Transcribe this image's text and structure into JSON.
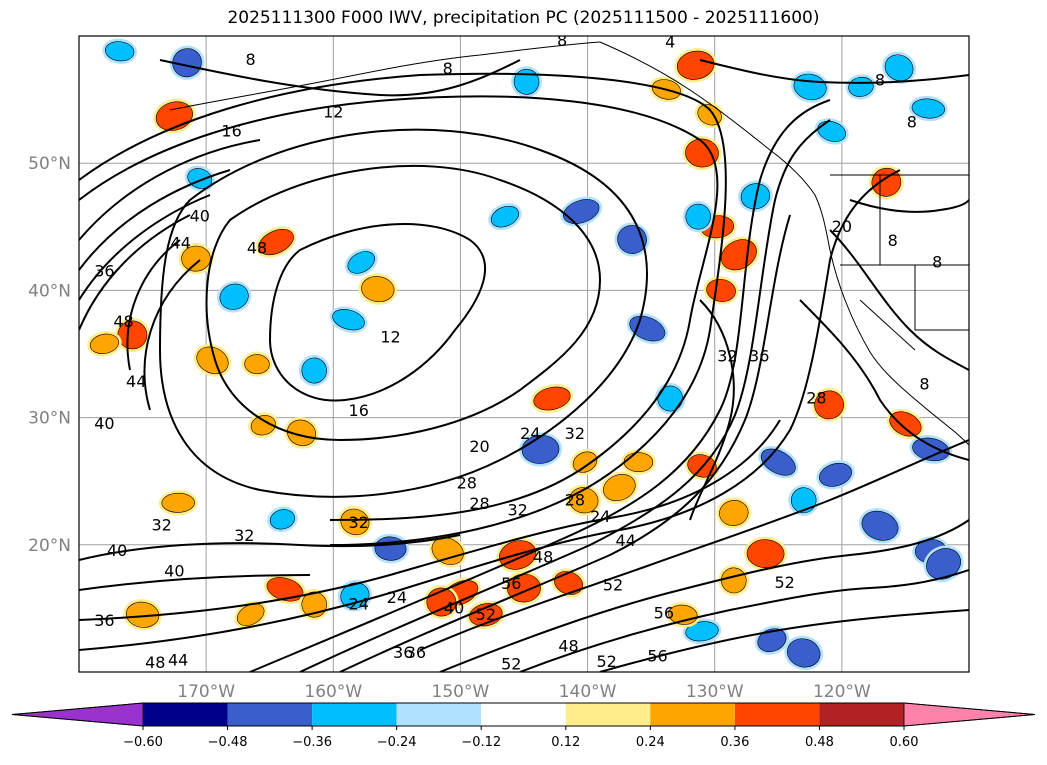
{
  "chart_data": {
    "type": "map-contour",
    "title": "2025111300 F000 IWV, precipitation PC (2025111500 - 2025111600)",
    "lon_range": [
      -180,
      -110
    ],
    "lat_range": [
      10,
      60
    ],
    "lat_ticks": [
      {
        "value": 20,
        "label": "20°N"
      },
      {
        "value": 30,
        "label": "30°N"
      },
      {
        "value": 40,
        "label": "40°N"
      },
      {
        "value": 50,
        "label": "50°N"
      }
    ],
    "lon_ticks": [
      {
        "value": -170,
        "label": "170°W"
      },
      {
        "value": -160,
        "label": "160°W"
      },
      {
        "value": -150,
        "label": "150°W"
      },
      {
        "value": -140,
        "label": "140°W"
      },
      {
        "value": -130,
        "label": "130°W"
      },
      {
        "value": -120,
        "label": "120°W"
      }
    ],
    "contour_labels": [
      {
        "lon": -166.5,
        "lat": 58.1,
        "text": "8"
      },
      {
        "lon": -151,
        "lat": 57.4,
        "text": "8"
      },
      {
        "lon": -142,
        "lat": 59.6,
        "text": "8"
      },
      {
        "lon": -133.5,
        "lat": 59.5,
        "text": "4"
      },
      {
        "lon": -117,
        "lat": 56.5,
        "text": "8"
      },
      {
        "lon": -114.5,
        "lat": 53.2,
        "text": "8"
      },
      {
        "lon": -160,
        "lat": 54.0,
        "text": "12"
      },
      {
        "lon": -168,
        "lat": 52.5,
        "text": "16"
      },
      {
        "lon": -170.5,
        "lat": 45.8,
        "text": "40"
      },
      {
        "lon": -172,
        "lat": 43.7,
        "text": "44"
      },
      {
        "lon": -178,
        "lat": 41.5,
        "text": "36"
      },
      {
        "lon": -176.5,
        "lat": 37.5,
        "text": "48"
      },
      {
        "lon": -175.5,
        "lat": 32.8,
        "text": "44"
      },
      {
        "lon": -178,
        "lat": 29.5,
        "text": "40"
      },
      {
        "lon": -166,
        "lat": 43.3,
        "text": "48"
      },
      {
        "lon": -155.5,
        "lat": 36.3,
        "text": "12"
      },
      {
        "lon": -158,
        "lat": 30.5,
        "text": "16"
      },
      {
        "lon": -148.5,
        "lat": 27.7,
        "text": "20"
      },
      {
        "lon": -144.5,
        "lat": 28.7,
        "text": "24"
      },
      {
        "lon": -141,
        "lat": 28.7,
        "text": "32"
      },
      {
        "lon": -149.5,
        "lat": 24.8,
        "text": "28"
      },
      {
        "lon": -148.5,
        "lat": 23.2,
        "text": "28"
      },
      {
        "lon": -145.5,
        "lat": 22.7,
        "text": "32"
      },
      {
        "lon": -141,
        "lat": 23.5,
        "text": "28"
      },
      {
        "lon": -139,
        "lat": 22.2,
        "text": "24"
      },
      {
        "lon": -173.5,
        "lat": 21.5,
        "text": "32"
      },
      {
        "lon": -167,
        "lat": 20.7,
        "text": "32"
      },
      {
        "lon": -158,
        "lat": 21.7,
        "text": "32"
      },
      {
        "lon": -177,
        "lat": 19.5,
        "text": "40"
      },
      {
        "lon": -172.5,
        "lat": 17.9,
        "text": "40"
      },
      {
        "lon": -158,
        "lat": 15.3,
        "text": "24"
      },
      {
        "lon": -155,
        "lat": 15.8,
        "text": "24"
      },
      {
        "lon": -150.5,
        "lat": 15.0,
        "text": "40"
      },
      {
        "lon": -146,
        "lat": 16.9,
        "text": "56"
      },
      {
        "lon": -148,
        "lat": 14.5,
        "text": "52"
      },
      {
        "lon": -143.5,
        "lat": 19.0,
        "text": "48"
      },
      {
        "lon": -138,
        "lat": 16.8,
        "text": "52"
      },
      {
        "lon": -137,
        "lat": 20.3,
        "text": "44"
      },
      {
        "lon": -134,
        "lat": 14.6,
        "text": "56"
      },
      {
        "lon": -124.5,
        "lat": 17.0,
        "text": "52"
      },
      {
        "lon": -129,
        "lat": 34.8,
        "text": "32"
      },
      {
        "lon": -126.5,
        "lat": 34.8,
        "text": "36"
      },
      {
        "lon": -122,
        "lat": 31.5,
        "text": "28"
      },
      {
        "lon": -120,
        "lat": 45.0,
        "text": "20"
      },
      {
        "lon": -116,
        "lat": 43.9,
        "text": "8"
      },
      {
        "lon": -112.5,
        "lat": 42.2,
        "text": "8"
      },
      {
        "lon": -113.5,
        "lat": 32.6,
        "text": "8"
      },
      {
        "lon": -178,
        "lat": 14.0,
        "text": "36"
      },
      {
        "lon": -174,
        "lat": 10.7,
        "text": "48"
      },
      {
        "lon": -172.2,
        "lat": 10.9,
        "text": "44"
      },
      {
        "lon": -146,
        "lat": 10.6,
        "text": "52"
      },
      {
        "lon": -141.5,
        "lat": 12.0,
        "text": "48"
      },
      {
        "lon": -138.5,
        "lat": 10.8,
        "text": "52"
      },
      {
        "lon": -134.5,
        "lat": 11.2,
        "text": "56"
      },
      {
        "lon": -154.5,
        "lat": 11.5,
        "text": "36"
      },
      {
        "lon": -153.5,
        "lat": 11.5,
        "text": "36"
      }
    ],
    "colorbar": {
      "extend": "both",
      "levels": [
        -0.6,
        -0.48,
        -0.36,
        -0.24,
        -0.12,
        0.12,
        0.24,
        0.36,
        0.48,
        0.6
      ],
      "tick_labels": [
        "−0.60",
        "−0.48",
        "−0.36",
        "−0.24",
        "−0.12",
        "0.12",
        "0.24",
        "0.36",
        "0.48",
        "0.60"
      ],
      "colors": [
        "#9a32cd",
        "#00008b",
        "#3a5fcd",
        "#00bfff",
        "#b0e2ff",
        "#ffffff",
        "#ffec8b",
        "#ffa500",
        "#ff4500",
        "#b22222",
        "#ff82ab"
      ]
    },
    "precip_patches": [
      {
        "lon": -171.5,
        "lat": 57.9,
        "level": -0.42
      },
      {
        "lon": -176.8,
        "lat": 58.8,
        "level": -0.3
      },
      {
        "lon": -172.5,
        "lat": 53.7,
        "level": 0.42
      },
      {
        "lon": -170.5,
        "lat": 48.8,
        "level": -0.3
      },
      {
        "lon": -170.8,
        "lat": 42.5,
        "level": 0.3
      },
      {
        "lon": -164.5,
        "lat": 43.8,
        "level": 0.42
      },
      {
        "lon": -175.8,
        "lat": 36.5,
        "level": 0.42
      },
      {
        "lon": -178,
        "lat": 35.8,
        "level": 0.3
      },
      {
        "lon": -169.5,
        "lat": 34.5,
        "level": 0.3
      },
      {
        "lon": -166,
        "lat": 34.2,
        "level": 0.3
      },
      {
        "lon": -167.8,
        "lat": 39.5,
        "level": -0.3
      },
      {
        "lon": -158.8,
        "lat": 37.7,
        "level": -0.3
      },
      {
        "lon": -161.5,
        "lat": 33.7,
        "level": -0.3
      },
      {
        "lon": -157.8,
        "lat": 42.2,
        "level": -0.3
      },
      {
        "lon": -156.5,
        "lat": 40.1,
        "level": 0.3
      },
      {
        "lon": -165.5,
        "lat": 29.4,
        "level": 0.3
      },
      {
        "lon": -162.5,
        "lat": 28.8,
        "level": 0.3
      },
      {
        "lon": -172.2,
        "lat": 23.3,
        "level": 0.3
      },
      {
        "lon": -144.8,
        "lat": 56.4,
        "level": -0.3
      },
      {
        "lon": -133.8,
        "lat": 55.8,
        "level": 0.3
      },
      {
        "lon": -131.5,
        "lat": 57.7,
        "level": 0.42
      },
      {
        "lon": -130.4,
        "lat": 53.8,
        "level": 0.3
      },
      {
        "lon": -131,
        "lat": 50.8,
        "level": 0.42
      },
      {
        "lon": -140.5,
        "lat": 46.2,
        "level": -0.42
      },
      {
        "lon": -136.5,
        "lat": 44.0,
        "level": -0.42
      },
      {
        "lon": -129.8,
        "lat": 45.0,
        "level": 0.42
      },
      {
        "lon": -128.1,
        "lat": 42.8,
        "level": 0.42
      },
      {
        "lon": -129.5,
        "lat": 40.0,
        "level": 0.42
      },
      {
        "lon": -126.8,
        "lat": 47.4,
        "level": -0.3
      },
      {
        "lon": -135.3,
        "lat": 37.0,
        "level": -0.42
      },
      {
        "lon": -131.3,
        "lat": 45.8,
        "level": -0.3
      },
      {
        "lon": -146.5,
        "lat": 45.8,
        "level": -0.3
      },
      {
        "lon": -122.5,
        "lat": 56.0,
        "level": -0.3
      },
      {
        "lon": -118.5,
        "lat": 56.0,
        "level": -0.3
      },
      {
        "lon": -115.5,
        "lat": 57.5,
        "level": -0.3
      },
      {
        "lon": -113.2,
        "lat": 54.3,
        "level": -0.3
      },
      {
        "lon": -116.5,
        "lat": 48.5,
        "level": 0.42
      },
      {
        "lon": -120.8,
        "lat": 52.5,
        "level": -0.3
      },
      {
        "lon": -143.7,
        "lat": 27.5,
        "level": -0.42
      },
      {
        "lon": -140.2,
        "lat": 26.5,
        "level": 0.3
      },
      {
        "lon": -140.3,
        "lat": 23.5,
        "level": 0.3
      },
      {
        "lon": -142.8,
        "lat": 31.5,
        "level": 0.42
      },
      {
        "lon": -133.5,
        "lat": 31.5,
        "level": -0.3
      },
      {
        "lon": -136,
        "lat": 26.5,
        "level": 0.3
      },
      {
        "lon": -137.5,
        "lat": 24.5,
        "level": 0.3
      },
      {
        "lon": -131,
        "lat": 26.2,
        "level": 0.42
      },
      {
        "lon": -128.5,
        "lat": 22.5,
        "level": 0.3
      },
      {
        "lon": -125,
        "lat": 26.5,
        "level": -0.42
      },
      {
        "lon": -123,
        "lat": 23.5,
        "level": -0.3
      },
      {
        "lon": -120.5,
        "lat": 25.5,
        "level": -0.42
      },
      {
        "lon": -117,
        "lat": 21.5,
        "level": -0.42
      },
      {
        "lon": -113,
        "lat": 19.5,
        "level": -0.48
      },
      {
        "lon": -112,
        "lat": 18.5,
        "level": -0.48
      },
      {
        "lon": -113,
        "lat": 27.5,
        "level": -0.42
      },
      {
        "lon": -121,
        "lat": 31.0,
        "level": 0.42
      },
      {
        "lon": -115,
        "lat": 29.5,
        "level": 0.42
      },
      {
        "lon": -126,
        "lat": 19.3,
        "level": 0.42
      },
      {
        "lon": -125.5,
        "lat": 12.5,
        "level": -0.42
      },
      {
        "lon": -123,
        "lat": 11.5,
        "level": -0.42
      },
      {
        "lon": -131,
        "lat": 13.2,
        "level": -0.3
      },
      {
        "lon": -128.5,
        "lat": 17.2,
        "level": 0.3
      },
      {
        "lon": -132.5,
        "lat": 14.5,
        "level": 0.3
      },
      {
        "lon": -145.5,
        "lat": 19.2,
        "level": 0.42
      },
      {
        "lon": -141.5,
        "lat": 17.0,
        "level": 0.42
      },
      {
        "lon": -145,
        "lat": 16.6,
        "level": 0.42
      },
      {
        "lon": -150,
        "lat": 16.2,
        "level": 0.42
      },
      {
        "lon": -151.5,
        "lat": 15.5,
        "level": 0.42
      },
      {
        "lon": -148,
        "lat": 14.5,
        "level": 0.42
      },
      {
        "lon": -151,
        "lat": 19.5,
        "level": 0.3
      },
      {
        "lon": -155.5,
        "lat": 19.7,
        "level": -0.48
      },
      {
        "lon": -158.3,
        "lat": 16.0,
        "level": -0.3
      },
      {
        "lon": -163.8,
        "lat": 16.5,
        "level": 0.42
      },
      {
        "lon": -161.5,
        "lat": 15.3,
        "level": 0.3
      },
      {
        "lon": -166.5,
        "lat": 14.5,
        "level": 0.3
      },
      {
        "lon": -175,
        "lat": 14.5,
        "level": 0.3
      },
      {
        "lon": -164,
        "lat": 22.0,
        "level": -0.3
      },
      {
        "lon": -158.3,
        "lat": 21.8,
        "level": 0.3
      }
    ]
  }
}
